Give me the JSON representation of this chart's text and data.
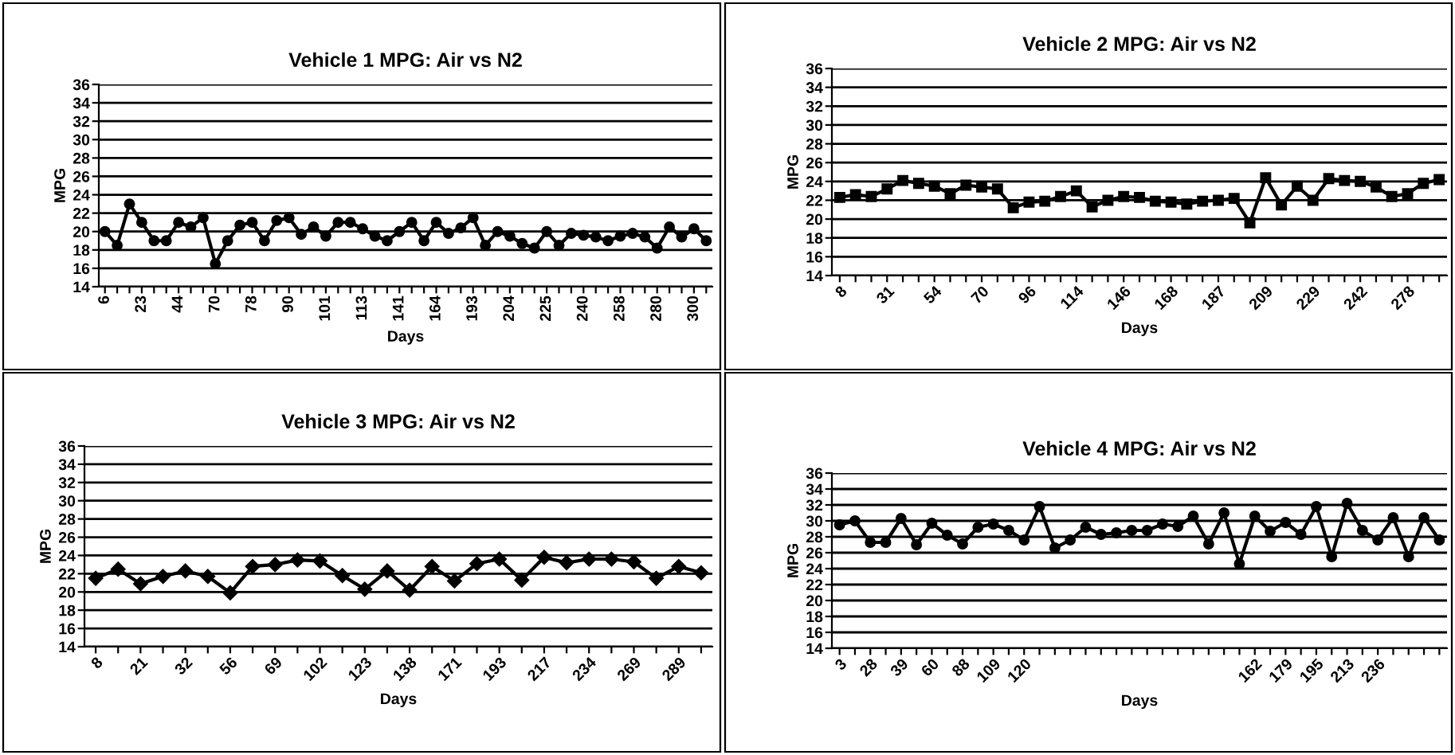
{
  "chart_data": [
    {
      "type": "line",
      "title": "Vehicle 1 MPG: Air vs N2",
      "xlabel": "Days",
      "ylabel": "MPG",
      "categories": [
        "6",
        null,
        null,
        "23",
        null,
        null,
        "44",
        null,
        null,
        "70",
        null,
        null,
        "78",
        null,
        null,
        "90",
        null,
        null,
        "101",
        null,
        null,
        "113",
        null,
        null,
        "141",
        null,
        null,
        "164",
        null,
        null,
        "193",
        null,
        null,
        "204",
        null,
        null,
        "225",
        null,
        null,
        "240",
        null,
        null,
        "258",
        null,
        null,
        "280",
        null,
        null,
        "300",
        null
      ],
      "series": [
        {
          "color": "#000000",
          "values": [
            20,
            18.5,
            23,
            21,
            19,
            19,
            21,
            20.5,
            21.5,
            16.5,
            19,
            20.7,
            21,
            19,
            21.2,
            21.5,
            19.7,
            20.5,
            19.5,
            21,
            21,
            20.3,
            19.5,
            19,
            20,
            21,
            19,
            21,
            19.8,
            20.4,
            21.5,
            18.5,
            20,
            19.5,
            18.7,
            18.2,
            20,
            18.5,
            19.8,
            19.6,
            19.4,
            19,
            19.5,
            19.8,
            19.4,
            18.2,
            20.5,
            19.4,
            20.3,
            19
          ]
        }
      ],
      "ylim": [
        14,
        36
      ],
      "yticks": [
        14,
        16,
        18,
        20,
        22,
        24,
        26,
        28,
        30,
        32,
        34,
        36
      ],
      "grid": "y",
      "marker": "circle",
      "line_style": "solid"
    },
    {
      "type": "line",
      "title": "Vehicle 2 MPG: Air vs N2",
      "xlabel": "Days",
      "ylabel": "MPG",
      "categories": [
        "8",
        null,
        null,
        "31",
        null,
        null,
        "54",
        null,
        null,
        "70",
        null,
        null,
        "96",
        null,
        null,
        "114",
        null,
        null,
        "146",
        null,
        null,
        "168",
        null,
        null,
        "187",
        null,
        null,
        "209",
        null,
        null,
        "229",
        null,
        null,
        "242",
        null,
        null,
        "278",
        null,
        null
      ],
      "series": [
        {
          "color": "#000000",
          "values": [
            22.3,
            22.6,
            22.4,
            23.2,
            24.1,
            23.8,
            23.5,
            22.7,
            23.6,
            23.4,
            23.2,
            21.2,
            21.8,
            21.9,
            22.4,
            23,
            21.3,
            22,
            22.4,
            22.3,
            21.9,
            21.8,
            21.6,
            21.9,
            22,
            22.2,
            19.6,
            24.4,
            21.5,
            23.5,
            22,
            24.3,
            24.1,
            24,
            23.4,
            22.4,
            22.7,
            23.8,
            24.2
          ]
        }
      ],
      "ylim": [
        14,
        36
      ],
      "yticks": [
        14,
        16,
        18,
        20,
        22,
        24,
        26,
        28,
        30,
        32,
        34,
        36
      ],
      "grid": "y",
      "marker": "square",
      "line_style": "solid"
    },
    {
      "type": "line",
      "title": "Vehicle 3 MPG: Air vs N2",
      "xlabel": "Days",
      "ylabel": "MPG",
      "categories": [
        "8",
        null,
        "21",
        null,
        "32",
        null,
        "56",
        null,
        "69",
        null,
        "102",
        null,
        "123",
        null,
        "138",
        null,
        "171",
        null,
        "193",
        null,
        "217",
        null,
        "234",
        null,
        "269",
        null,
        "289",
        null
      ],
      "series": [
        {
          "color": "#000000",
          "values": [
            21.5,
            22.5,
            20.9,
            21.7,
            22.3,
            21.7,
            19.9,
            22.8,
            23,
            23.5,
            23.4,
            21.8,
            20.3,
            22.3,
            20.2,
            22.8,
            21.2,
            23.1,
            23.6,
            21.3,
            23.8,
            23.2,
            23.6,
            23.6,
            23.3,
            21.5,
            22.8,
            22.1
          ]
        }
      ],
      "ylim": [
        14,
        36
      ],
      "yticks": [
        14,
        16,
        18,
        20,
        22,
        24,
        26,
        28,
        30,
        32,
        34,
        36
      ],
      "grid": "y",
      "marker": "diamond",
      "line_style": "solid"
    },
    {
      "type": "line",
      "title": "Vehicle 4 MPG: Air vs N2",
      "xlabel": "Days",
      "ylabel": "MPG",
      "categories": [
        "3",
        null,
        "28",
        null,
        "39",
        null,
        "60",
        null,
        "88",
        null,
        "109",
        null,
        "120",
        null,
        null,
        null,
        null,
        null,
        null,
        null,
        null,
        null,
        null,
        null,
        null,
        null,
        null,
        "162",
        null,
        "179",
        null,
        "195",
        null,
        "213",
        null,
        "236",
        null,
        null,
        null,
        null
      ],
      "series": [
        {
          "color": "#000000",
          "values": [
            29.5,
            30,
            27.3,
            27.3,
            30.3,
            27,
            29.7,
            28.2,
            27.1,
            29.2,
            29.6,
            28.8,
            27.6,
            31.8,
            26.6,
            27.6,
            29.2,
            28.3,
            28.5,
            28.8,
            28.8,
            29.6,
            29.3,
            30.6,
            27.1,
            31,
            24.6,
            30.6,
            28.7,
            29.8,
            28.3,
            31.8,
            25.5,
            32.2,
            28.8,
            27.6,
            30.4,
            25.5,
            30.4,
            27.6
          ]
        }
      ],
      "ylim": [
        14,
        36
      ],
      "yticks": [
        14,
        16,
        18,
        20,
        22,
        24,
        26,
        28,
        30,
        32,
        34,
        36
      ],
      "grid": "y",
      "marker": "circle",
      "line_style": "solid"
    }
  ]
}
